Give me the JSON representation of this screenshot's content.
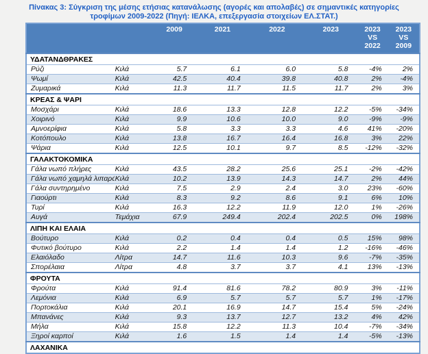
{
  "title": {
    "line1": "Πίνακας 3: Σύγκριση της μέσης ετήσιας κατανάλωσης (αγορές και απολαβές)  σε σημαντικές κατηγορίες",
    "line2": "τροφίμων 2009-2022 (Πηγή: ΙΕΛΚΑ, επεξεργασία στοιχείων ΕΛ.ΣΤΑΤ.)"
  },
  "colors": {
    "title_text": "#2160c4",
    "header_bg": "#4f81bd",
    "header_text": "#ffffff",
    "band_bg": "#dce6f1",
    "row_border": "#9db9dd",
    "table_border": "#7ba2d4"
  },
  "table": {
    "year_columns": [
      "2009",
      "2021",
      "2022",
      "2023"
    ],
    "vs_columns": [
      [
        "2023",
        "VS",
        "2022"
      ],
      [
        "2023",
        "VS",
        "2009"
      ]
    ],
    "rows": [
      {
        "type": "section",
        "label": "ΥΔΑΤΑΝΔΘΡΑΚΕΣ"
      },
      {
        "type": "item",
        "name": "Ρύζι",
        "unit": "Κιλά",
        "values": [
          "5.7",
          "6.1",
          "6.0",
          "5.8"
        ],
        "vs": [
          "-4%",
          "2%"
        ]
      },
      {
        "type": "item",
        "name": "Ψωμί",
        "unit": "Κιλά",
        "values": [
          "42.5",
          "40.4",
          "39.8",
          "40.8"
        ],
        "vs": [
          "2%",
          "-4%"
        ]
      },
      {
        "type": "item",
        "name": "Ζυμαρικά",
        "unit": "Κιλά",
        "values": [
          "11.3",
          "11.7",
          "11.5",
          "11.7"
        ],
        "vs": [
          "2%",
          "3%"
        ]
      },
      {
        "type": "section",
        "label": "ΚΡΕΑΣ & ΨΑΡΙ"
      },
      {
        "type": "item",
        "name": "Μοσχάρι",
        "unit": "Κιλά",
        "values": [
          "18.6",
          "13.3",
          "12.8",
          "12.2"
        ],
        "vs": [
          "-5%",
          "-34%"
        ]
      },
      {
        "type": "item",
        "name": "Χοιρινό",
        "unit": "Κιλά",
        "values": [
          "9.9",
          "10.6",
          "10.0",
          "9.0"
        ],
        "vs": [
          "-9%",
          "-9%"
        ]
      },
      {
        "type": "item",
        "name": "Αμνοερίφια",
        "unit": "Κιλά",
        "values": [
          "5.8",
          "3.3",
          "3.3",
          "4.6"
        ],
        "vs": [
          "41%",
          "-20%"
        ]
      },
      {
        "type": "item",
        "name": "Κοτόπουλο",
        "unit": "Κιλά",
        "values": [
          "13.8",
          "16.7",
          "16.4",
          "16.8"
        ],
        "vs": [
          "3%",
          "22%"
        ]
      },
      {
        "type": "item",
        "name": "Ψάρια",
        "unit": "Κιλά",
        "values": [
          "12.5",
          "10.1",
          "9.7",
          "8.5"
        ],
        "vs": [
          "-12%",
          "-32%"
        ]
      },
      {
        "type": "section",
        "label": "ΓΑΛΑΚΤΟΚΟΜΙΚΑ"
      },
      {
        "type": "item",
        "name": "Γάλα νωπό  πλήρες",
        "unit": "Κιλά",
        "values": [
          "43.5",
          "28.2",
          "25.6",
          "25.1"
        ],
        "vs": [
          "-2%",
          "-42%"
        ]
      },
      {
        "type": "item",
        "name": "Γάλα νωπό  χαμηλά λιπαρά",
        "unit": "Κιλά",
        "values": [
          "10.2",
          "13.9",
          "14.3",
          "14.7"
        ],
        "vs": [
          "2%",
          "44%"
        ]
      },
      {
        "type": "item",
        "name": "Γάλα συντηρημένο",
        "unit": "Κιλά",
        "values": [
          "7.5",
          "2.9",
          "2.4",
          "3.0"
        ],
        "vs": [
          "23%",
          "-60%"
        ]
      },
      {
        "type": "item",
        "name": "Γιαούρτι",
        "unit": "Κιλά",
        "values": [
          "8.3",
          "9.2",
          "8.6",
          "9.1"
        ],
        "vs": [
          "6%",
          "10%"
        ]
      },
      {
        "type": "item",
        "name": "Τυρί",
        "unit": "Κιλά",
        "values": [
          "16.3",
          "12.2",
          "11.9",
          "12.0"
        ],
        "vs": [
          "1%",
          "-26%"
        ]
      },
      {
        "type": "item",
        "name": "Αυγά",
        "unit": "Τεμάχια",
        "values": [
          "67.9",
          "249.4",
          "202.4",
          "202.5"
        ],
        "vs": [
          "0%",
          "198%"
        ]
      },
      {
        "type": "section",
        "label": "ΛΙΠΗ ΚΑΙ ΕΛΑΙΑ"
      },
      {
        "type": "item",
        "name": "Βούτυρο",
        "unit": "Κιλά",
        "values": [
          "0.2",
          "0.4",
          "0.4",
          "0.5"
        ],
        "vs": [
          "15%",
          "98%"
        ]
      },
      {
        "type": "item",
        "name": "Φυτικό βούτυρο",
        "unit": "Κιλά",
        "values": [
          "2.2",
          "1.4",
          "1.4",
          "1.2"
        ],
        "vs": [
          "-16%",
          "-46%"
        ]
      },
      {
        "type": "item",
        "name": "Ελαιόλαδο",
        "unit": "Λίτρα",
        "values": [
          "14.7",
          "11.6",
          "10.3",
          "9.6"
        ],
        "vs": [
          "-7%",
          "-35%"
        ]
      },
      {
        "type": "item",
        "name": "Σπορέλαια",
        "unit": "Λίτρα",
        "values": [
          "4.8",
          "3.7",
          "3.7",
          "4.1"
        ],
        "vs": [
          "13%",
          "-13%"
        ]
      },
      {
        "type": "section",
        "label": "ΦΡΟΥΤΑ"
      },
      {
        "type": "item",
        "name": "Φρούτα",
        "unit": "Κιλά",
        "values": [
          "91.4",
          "81.6",
          "78.2",
          "80.9"
        ],
        "vs": [
          "3%",
          "-11%"
        ]
      },
      {
        "type": "item",
        "name": "Λεμόνια",
        "unit": "Κιλά",
        "values": [
          "6.9",
          "5.7",
          "5.7",
          "5.7"
        ],
        "vs": [
          "1%",
          "-17%"
        ]
      },
      {
        "type": "item",
        "name": "Πορτοκάλια",
        "unit": "Κιλά",
        "values": [
          "20.1",
          "16.9",
          "14.7",
          "15.4"
        ],
        "vs": [
          "5%",
          "-24%"
        ]
      },
      {
        "type": "item",
        "name": "Μπανάνες",
        "unit": "Κιλά",
        "values": [
          "9.3",
          "13.7",
          "12.7",
          "13.2"
        ],
        "vs": [
          "4%",
          "42%"
        ]
      },
      {
        "type": "item",
        "name": "Μήλα",
        "unit": "Κιλά",
        "values": [
          "15.8",
          "12.2",
          "11.3",
          "10.4"
        ],
        "vs": [
          "-7%",
          "-34%"
        ]
      },
      {
        "type": "item",
        "name": "Ξηροί καρποί",
        "unit": "Κιλά",
        "values": [
          "1.6",
          "1.5",
          "1.4",
          "1.4"
        ],
        "vs": [
          "-5%",
          "-13%"
        ]
      },
      {
        "type": "section",
        "label": "ΛΑΧΑΝΙΚΑ"
      }
    ]
  }
}
